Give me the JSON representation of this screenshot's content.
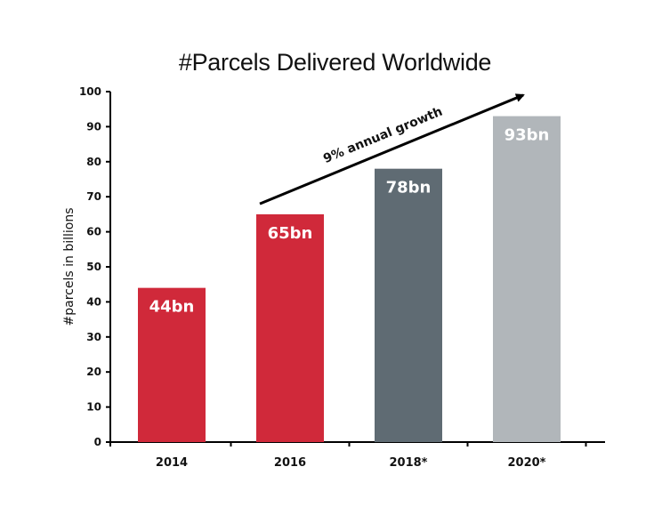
{
  "chart_data": {
    "type": "bar",
    "title": "#Parcels Delivered Worldwide",
    "xlabel": "",
    "ylabel": "#parcels in billions",
    "categories": [
      "2014",
      "2016",
      "2018*",
      "2020*"
    ],
    "values": [
      44,
      65,
      78,
      93
    ],
    "data_labels": [
      "44bn",
      "65bn",
      "78bn",
      "93bn"
    ],
    "bar_colors": [
      "#d0293a",
      "#d0293a",
      "#5f6b73",
      "#b1b6ba"
    ],
    "ylim": [
      0,
      100
    ],
    "yticks": [
      0,
      10,
      20,
      30,
      40,
      50,
      60,
      70,
      80,
      90,
      100
    ],
    "grid": false,
    "legend": "none",
    "annotation": {
      "text": "9% annual growth",
      "from": {
        "category": "2016",
        "value": 68
      },
      "to": {
        "category": "2020*",
        "value": 99
      }
    }
  }
}
